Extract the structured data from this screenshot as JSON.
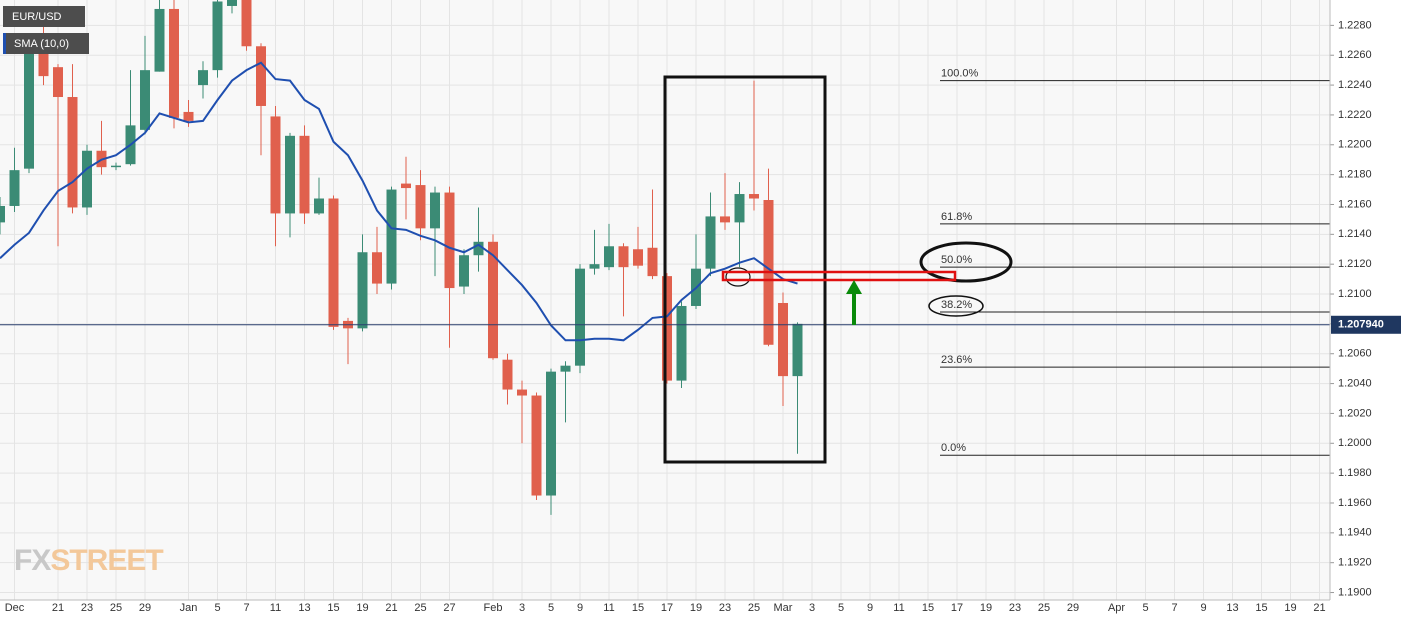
{
  "chart_data": {
    "type": "candlestick",
    "symbol": "EUR/USD",
    "categories": [
      null,
      "Dec",
      null,
      null,
      "21",
      null,
      "23",
      null,
      "25",
      null,
      "29",
      null,
      null,
      "Jan",
      null,
      "5",
      null,
      "7",
      null,
      "11",
      null,
      "13",
      null,
      "15",
      null,
      "19",
      null,
      "21",
      null,
      "25",
      null,
      "27",
      null,
      null,
      "Feb",
      null,
      "3",
      null,
      "5",
      null,
      "9",
      null,
      "11",
      null,
      "15",
      null,
      "17",
      null,
      "19",
      null,
      "23",
      null,
      "25",
      null,
      "Mar",
      null,
      "3",
      null,
      "5",
      null,
      "9",
      null,
      "11",
      null,
      "15",
      null,
      "17",
      null,
      "19",
      null,
      "23",
      null,
      "25",
      null,
      "29",
      null,
      null,
      "Apr",
      null,
      "5",
      null,
      "7",
      null,
      "9",
      null,
      "13",
      null,
      "15",
      null,
      "19",
      null,
      "21"
    ],
    "series": [
      {
        "name": "EUR/USD",
        "up_color": "#3b8b75",
        "down_color": "#e0604d",
        "open": [
          1.2148,
          1.2159,
          1.2184,
          1.2265,
          1.2252,
          1.2232,
          1.2158,
          1.2196,
          1.2185,
          1.2187,
          1.221,
          1.2249,
          1.2291,
          1.2222,
          1.224,
          1.225,
          1.2293,
          1.2297,
          1.2266,
          1.2219,
          1.2154,
          1.2206,
          1.2154,
          1.2164,
          1.2082,
          1.2077,
          1.2128,
          1.2107,
          1.2174,
          1.2173,
          1.2144,
          1.2168,
          1.2105,
          1.2126,
          1.2135,
          1.2056,
          1.2036,
          1.2032,
          1.1965,
          1.2048,
          1.2052,
          1.2117,
          1.2118,
          1.2132,
          1.213,
          1.2131,
          1.2112,
          1.2042,
          1.2092,
          1.2117,
          1.2152,
          1.2148,
          1.2167,
          1.2163,
          1.2094,
          1.2045,
          null,
          null,
          null,
          null,
          null,
          null,
          null,
          null,
          null,
          null,
          null,
          null,
          null,
          null,
          null,
          null,
          null,
          null,
          null,
          null,
          null,
          null,
          null,
          null,
          null,
          null,
          null,
          null,
          null,
          null,
          null,
          null,
          null,
          null,
          null,
          null
        ],
        "high": [
          1.2165,
          1.2198,
          1.2266,
          1.2282,
          1.2254,
          1.2254,
          1.22,
          1.2216,
          1.2188,
          1.225,
          1.2273,
          1.23,
          1.23,
          1.223,
          1.2256,
          1.23,
          1.23,
          1.23,
          1.2268,
          1.2226,
          1.2208,
          1.2213,
          1.2178,
          1.2166,
          1.2084,
          1.214,
          1.2145,
          1.2172,
          1.2192,
          1.2183,
          1.2172,
          1.2172,
          1.213,
          1.2158,
          1.214,
          1.206,
          1.2042,
          1.2034,
          1.205,
          1.2055,
          1.212,
          1.2143,
          1.2147,
          1.2134,
          1.2145,
          1.217,
          1.2114,
          1.2095,
          1.214,
          1.2168,
          1.2181,
          1.2175,
          1.2243,
          1.2184,
          1.2101,
          1.2081,
          null,
          null,
          null,
          null,
          null,
          null,
          null,
          null,
          null,
          null,
          null,
          null,
          null,
          null,
          null,
          null,
          null,
          null,
          null,
          null,
          null,
          null,
          null,
          null,
          null,
          null,
          null,
          null,
          null,
          null,
          null,
          null,
          null,
          null,
          null,
          null
        ],
        "low": [
          1.214,
          1.2155,
          1.2181,
          1.224,
          1.2132,
          1.2154,
          1.2153,
          1.218,
          1.2183,
          1.2186,
          1.2207,
          1.2249,
          1.2211,
          1.2212,
          1.2231,
          1.2245,
          1.2288,
          1.2263,
          1.2193,
          1.2132,
          1.2138,
          1.2147,
          1.2153,
          1.2076,
          1.2053,
          1.2075,
          1.21,
          1.2103,
          1.215,
          1.2136,
          1.2112,
          1.2064,
          1.21,
          1.2115,
          1.2056,
          1.2026,
          1.2,
          1.1962,
          1.1952,
          1.2014,
          1.2047,
          1.2113,
          1.2116,
          1.2085,
          1.2117,
          1.211,
          1.204,
          1.2037,
          1.209,
          1.2112,
          1.2143,
          1.2118,
          1.2156,
          1.2065,
          1.2025,
          1.1993,
          null,
          null,
          null,
          null,
          null,
          null,
          null,
          null,
          null,
          null,
          null,
          null,
          null,
          null,
          null,
          null,
          null,
          null,
          null,
          null,
          null,
          null,
          null,
          null,
          null,
          null,
          null,
          null,
          null,
          null,
          null,
          null,
          null,
          null,
          null,
          null
        ],
        "close": [
          1.2159,
          1.2183,
          1.2263,
          1.2246,
          1.2232,
          1.2158,
          1.2196,
          1.2185,
          1.2186,
          1.2213,
          1.225,
          1.2291,
          1.2218,
          1.2216,
          1.225,
          1.2296,
          1.2297,
          1.2266,
          1.2226,
          1.2154,
          1.2206,
          1.2154,
          1.2164,
          1.2078,
          1.2077,
          1.2128,
          1.2107,
          1.217,
          1.2171,
          1.2144,
          1.2168,
          1.2104,
          1.2126,
          1.2135,
          1.2057,
          1.2036,
          1.2032,
          1.1965,
          1.2048,
          1.2052,
          1.2117,
          1.212,
          1.2132,
          1.2118,
          1.2119,
          1.2112,
          1.2042,
          1.2092,
          1.2117,
          1.2152,
          1.2148,
          1.2167,
          1.2164,
          1.2066,
          1.2045,
          1.208,
          null,
          null,
          null,
          null,
          null,
          null,
          null,
          null,
          null,
          null,
          null,
          null,
          null,
          null,
          null,
          null,
          null,
          null,
          null,
          null,
          null,
          null,
          null,
          null,
          null,
          null,
          null,
          null,
          null,
          null,
          null,
          null,
          null,
          null,
          null,
          null
        ]
      },
      {
        "name": "SMA (10,0)",
        "color": "#1f4fb0",
        "values": [
          1.2124,
          1.2133,
          1.2141,
          1.2156,
          1.2169,
          1.2175,
          1.2184,
          1.219,
          1.2193,
          1.22,
          1.2208,
          1.2221,
          1.2218,
          1.2215,
          1.2216,
          1.223,
          1.2243,
          1.225,
          1.2255,
          1.2244,
          1.2243,
          1.223,
          1.2224,
          1.2202,
          1.2193,
          1.2176,
          1.2156,
          1.2144,
          1.2143,
          1.2139,
          1.2136,
          1.2131,
          1.2128,
          1.2133,
          1.2126,
          1.2116,
          1.2106,
          1.2094,
          1.2079,
          1.2069,
          1.2069,
          1.207,
          1.207,
          1.2069,
          1.2076,
          1.2084,
          1.2085,
          1.2096,
          1.2104,
          1.2114,
          1.2117,
          1.2121,
          1.2124,
          1.2117,
          1.211,
          1.2107,
          null,
          null,
          null,
          null,
          null,
          null,
          null,
          null,
          null,
          null,
          null,
          null,
          null,
          null,
          null,
          null,
          null,
          null,
          null,
          null,
          null,
          null,
          null,
          null,
          null,
          null,
          null,
          null,
          null,
          null,
          null,
          null,
          null,
          null,
          null,
          null
        ]
      }
    ],
    "ylim": [
      1.1895,
      1.2297
    ],
    "yticks": [
      {
        "value": 1.19,
        "label": "1.1900"
      },
      {
        "value": 1.192,
        "label": "1.1920"
      },
      {
        "value": 1.194,
        "label": "1.1940"
      },
      {
        "value": 1.196,
        "label": "1.1960"
      },
      {
        "value": 1.198,
        "label": "1.1980"
      },
      {
        "value": 1.2,
        "label": "1.2000"
      },
      {
        "value": 1.202,
        "label": "1.2020"
      },
      {
        "value": 1.204,
        "label": "1.2040"
      },
      {
        "value": 1.206,
        "label": "1.2060"
      },
      {
        "value": 1.208,
        "label": "1.2080"
      },
      {
        "value": 1.21,
        "label": "1.2100"
      },
      {
        "value": 1.212,
        "label": "1.2120"
      },
      {
        "value": 1.214,
        "label": "1.2140"
      },
      {
        "value": 1.216,
        "label": "1.2160"
      },
      {
        "value": 1.218,
        "label": "1.2180"
      },
      {
        "value": 1.22,
        "label": "1.2200"
      },
      {
        "value": 1.222,
        "label": "1.2220"
      },
      {
        "value": 1.224,
        "label": "1.2240"
      },
      {
        "value": 1.226,
        "label": "1.2260"
      },
      {
        "value": 1.228,
        "label": "1.2280"
      }
    ],
    "grid": true,
    "last_price": {
      "value": 1.20794,
      "label": "1.207940"
    },
    "fib_levels": [
      {
        "label": "100.0%",
        "value": 1.2243
      },
      {
        "label": "61.8%",
        "value": 1.2147
      },
      {
        "label": "50.0%",
        "value": 1.2118
      },
      {
        "label": "38.2%",
        "value": 1.2088
      },
      {
        "label": "23.6%",
        "value": 1.2051
      },
      {
        "label": "0.0%",
        "value": 1.1992
      }
    ],
    "watermark": [
      "FX",
      "STREET"
    ]
  }
}
